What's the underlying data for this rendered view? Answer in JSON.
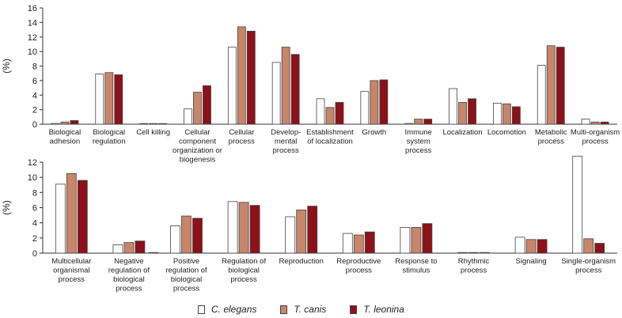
{
  "chart_data": [
    {
      "type": "bar",
      "ylabel": "(%)",
      "ylim": [
        0,
        16
      ],
      "yticks": [
        0,
        2,
        4,
        6,
        8,
        10,
        12,
        14,
        16
      ],
      "categories": [
        [
          "Biological",
          "adhesion"
        ],
        [
          "Biological",
          "regulation"
        ],
        [
          "Cell killing"
        ],
        [
          "Cellular",
          "component",
          "organization or",
          "biogenesis"
        ],
        [
          "Cellular",
          "process"
        ],
        [
          "Develop-",
          "mental",
          "process"
        ],
        [
          "Establishment",
          "of localization"
        ],
        [
          "Growth"
        ],
        [
          "Immune",
          "system",
          "process"
        ],
        [
          "Localization"
        ],
        [
          "Locomotion"
        ],
        [
          "Metabolic",
          "process"
        ],
        [
          "Multi-organism",
          "process"
        ]
      ],
      "series": [
        {
          "name": "C. elegans",
          "values": [
            0.1,
            6.9,
            0.05,
            2.1,
            10.6,
            8.5,
            3.5,
            4.5,
            0.1,
            4.9,
            2.9,
            8.1,
            0.7
          ]
        },
        {
          "name": "T. canis",
          "values": [
            0.3,
            7.1,
            0.05,
            4.4,
            13.4,
            10.6,
            2.3,
            6.0,
            0.7,
            3.0,
            2.8,
            10.8,
            0.3
          ]
        },
        {
          "name": "T. leonina",
          "values": [
            0.5,
            6.8,
            0.05,
            5.3,
            12.8,
            9.6,
            3.0,
            6.1,
            0.7,
            3.5,
            2.4,
            10.6,
            0.3
          ]
        }
      ]
    },
    {
      "type": "bar",
      "ylabel": "(%)",
      "ylim": [
        0,
        12
      ],
      "yticks": [
        0,
        2,
        4,
        6,
        8,
        10,
        12
      ],
      "categories": [
        [
          "Multicellular",
          "organismal",
          "process"
        ],
        [
          "Negative",
          "regulation of",
          "biological",
          "process"
        ],
        [
          "Positive",
          "regulation of",
          "biological",
          "process"
        ],
        [
          "Regulation of",
          "biological",
          "process"
        ],
        [
          "Reproduction"
        ],
        [
          "Reproductive",
          "process"
        ],
        [
          "Response to",
          "stimulus"
        ],
        [
          "Rhythmic",
          "process"
        ],
        [
          "Signaling"
        ],
        [
          "Single-organism",
          "process"
        ]
      ],
      "series": [
        {
          "name": "C. elegans",
          "values": [
            9.1,
            1.1,
            3.6,
            6.8,
            4.8,
            2.6,
            3.4,
            0.0,
            2.1,
            12.8
          ]
        },
        {
          "name": "T. canis",
          "values": [
            10.5,
            1.4,
            4.9,
            6.7,
            5.7,
            2.4,
            3.4,
            0.05,
            1.8,
            1.9
          ]
        },
        {
          "name": "T. leonina",
          "values": [
            9.6,
            1.6,
            4.6,
            6.3,
            6.2,
            2.8,
            3.9,
            0.05,
            1.8,
            1.3
          ]
        }
      ],
      "extra_marks": [
        {
          "category_index": 1,
          "value": 0.05,
          "color": "#8c1118"
        }
      ]
    }
  ],
  "legend": [
    {
      "label": "C. elegans",
      "color": "#ffffff"
    },
    {
      "label": "T. canis",
      "color": "#c7856a"
    },
    {
      "label": "T. leonina",
      "color": "#8c1118"
    }
  ],
  "colors": {
    "c_elegans": "#ffffff",
    "t_canis": "#c7856a",
    "t_leonina": "#8c1118",
    "edge": "#444444"
  }
}
